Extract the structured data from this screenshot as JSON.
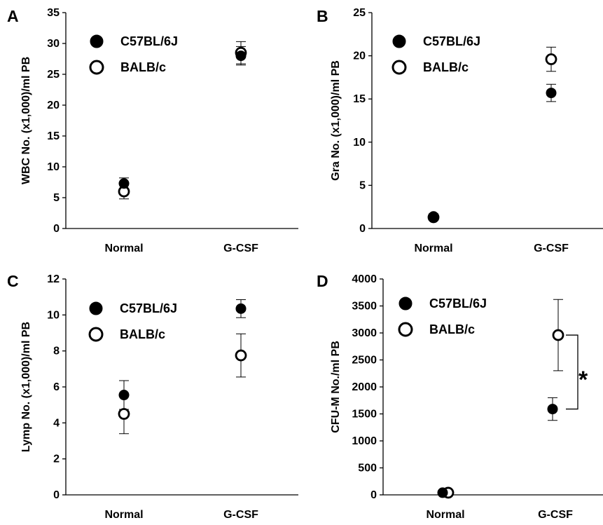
{
  "chart_data": [
    {
      "type": "scatter",
      "panel_label": "A",
      "title": "",
      "xlabel": "",
      "ylabel": "WBC No. (x1,000)/ml PB",
      "categories": [
        "Normal",
        "G-CSF"
      ],
      "ylim": [
        0,
        35
      ],
      "yticks": [
        0,
        5,
        10,
        15,
        20,
        25,
        30,
        35
      ],
      "grid": false,
      "legend_position": "top-left",
      "series": [
        {
          "name": "C57BL/6J",
          "marker": "filled-circle",
          "values": [
            7.3,
            28.0
          ],
          "error": [
            0.9,
            1.5
          ]
        },
        {
          "name": "BALB/c",
          "marker": "open-circle",
          "values": [
            6.0,
            28.5
          ],
          "error": [
            1.2,
            1.8
          ]
        }
      ]
    },
    {
      "type": "scatter",
      "panel_label": "B",
      "title": "",
      "xlabel": "",
      "ylabel": "Gra No. (x1,000)/ml PB",
      "categories": [
        "Normal",
        "G-CSF"
      ],
      "ylim": [
        0,
        25
      ],
      "yticks": [
        0,
        5,
        10,
        15,
        20,
        25
      ],
      "grid": false,
      "legend_position": "top-left",
      "series": [
        {
          "name": "C57BL/6J",
          "marker": "filled-circle",
          "values": [
            1.4,
            15.7
          ],
          "error": [
            0.3,
            1.0
          ]
        },
        {
          "name": "BALB/c",
          "marker": "open-circle",
          "values": [
            1.3,
            19.6
          ],
          "error": [
            0.3,
            1.4
          ]
        }
      ]
    },
    {
      "type": "scatter",
      "panel_label": "C",
      "title": "",
      "xlabel": "",
      "ylabel": "Lymp No. (x1,000)/ml PB",
      "categories": [
        "Normal",
        "G-CSF"
      ],
      "ylim": [
        0,
        12
      ],
      "yticks": [
        0,
        2,
        4,
        6,
        8,
        10,
        12
      ],
      "grid": false,
      "legend_position": "top-left",
      "series": [
        {
          "name": "C57BL/6J",
          "marker": "filled-circle",
          "values": [
            5.55,
            10.35
          ],
          "error": [
            0.8,
            0.5
          ]
        },
        {
          "name": "BALB/c",
          "marker": "open-circle",
          "values": [
            4.5,
            7.75
          ],
          "error": [
            1.1,
            1.2
          ]
        }
      ]
    },
    {
      "type": "scatter",
      "panel_label": "D",
      "title": "",
      "xlabel": "",
      "ylabel": "CFU-M No./ml PB",
      "categories": [
        "Normal",
        "G-CSF"
      ],
      "ylim": [
        0,
        4000
      ],
      "yticks": [
        0,
        500,
        1000,
        1500,
        2000,
        2500,
        3000,
        3500,
        4000
      ],
      "grid": false,
      "legend_position": "top-left",
      "series": [
        {
          "name": "C57BL/6J",
          "marker": "filled-circle",
          "values": [
            40,
            1590
          ],
          "error": [
            0,
            210
          ]
        },
        {
          "name": "BALB/c",
          "marker": "open-circle",
          "values": [
            40,
            2960
          ],
          "error": [
            0,
            660
          ]
        }
      ],
      "annotations": [
        {
          "type": "significance-bracket",
          "text": "*",
          "category": "G-CSF",
          "between": [
            "C57BL/6J",
            "BALB/c"
          ]
        }
      ]
    }
  ]
}
